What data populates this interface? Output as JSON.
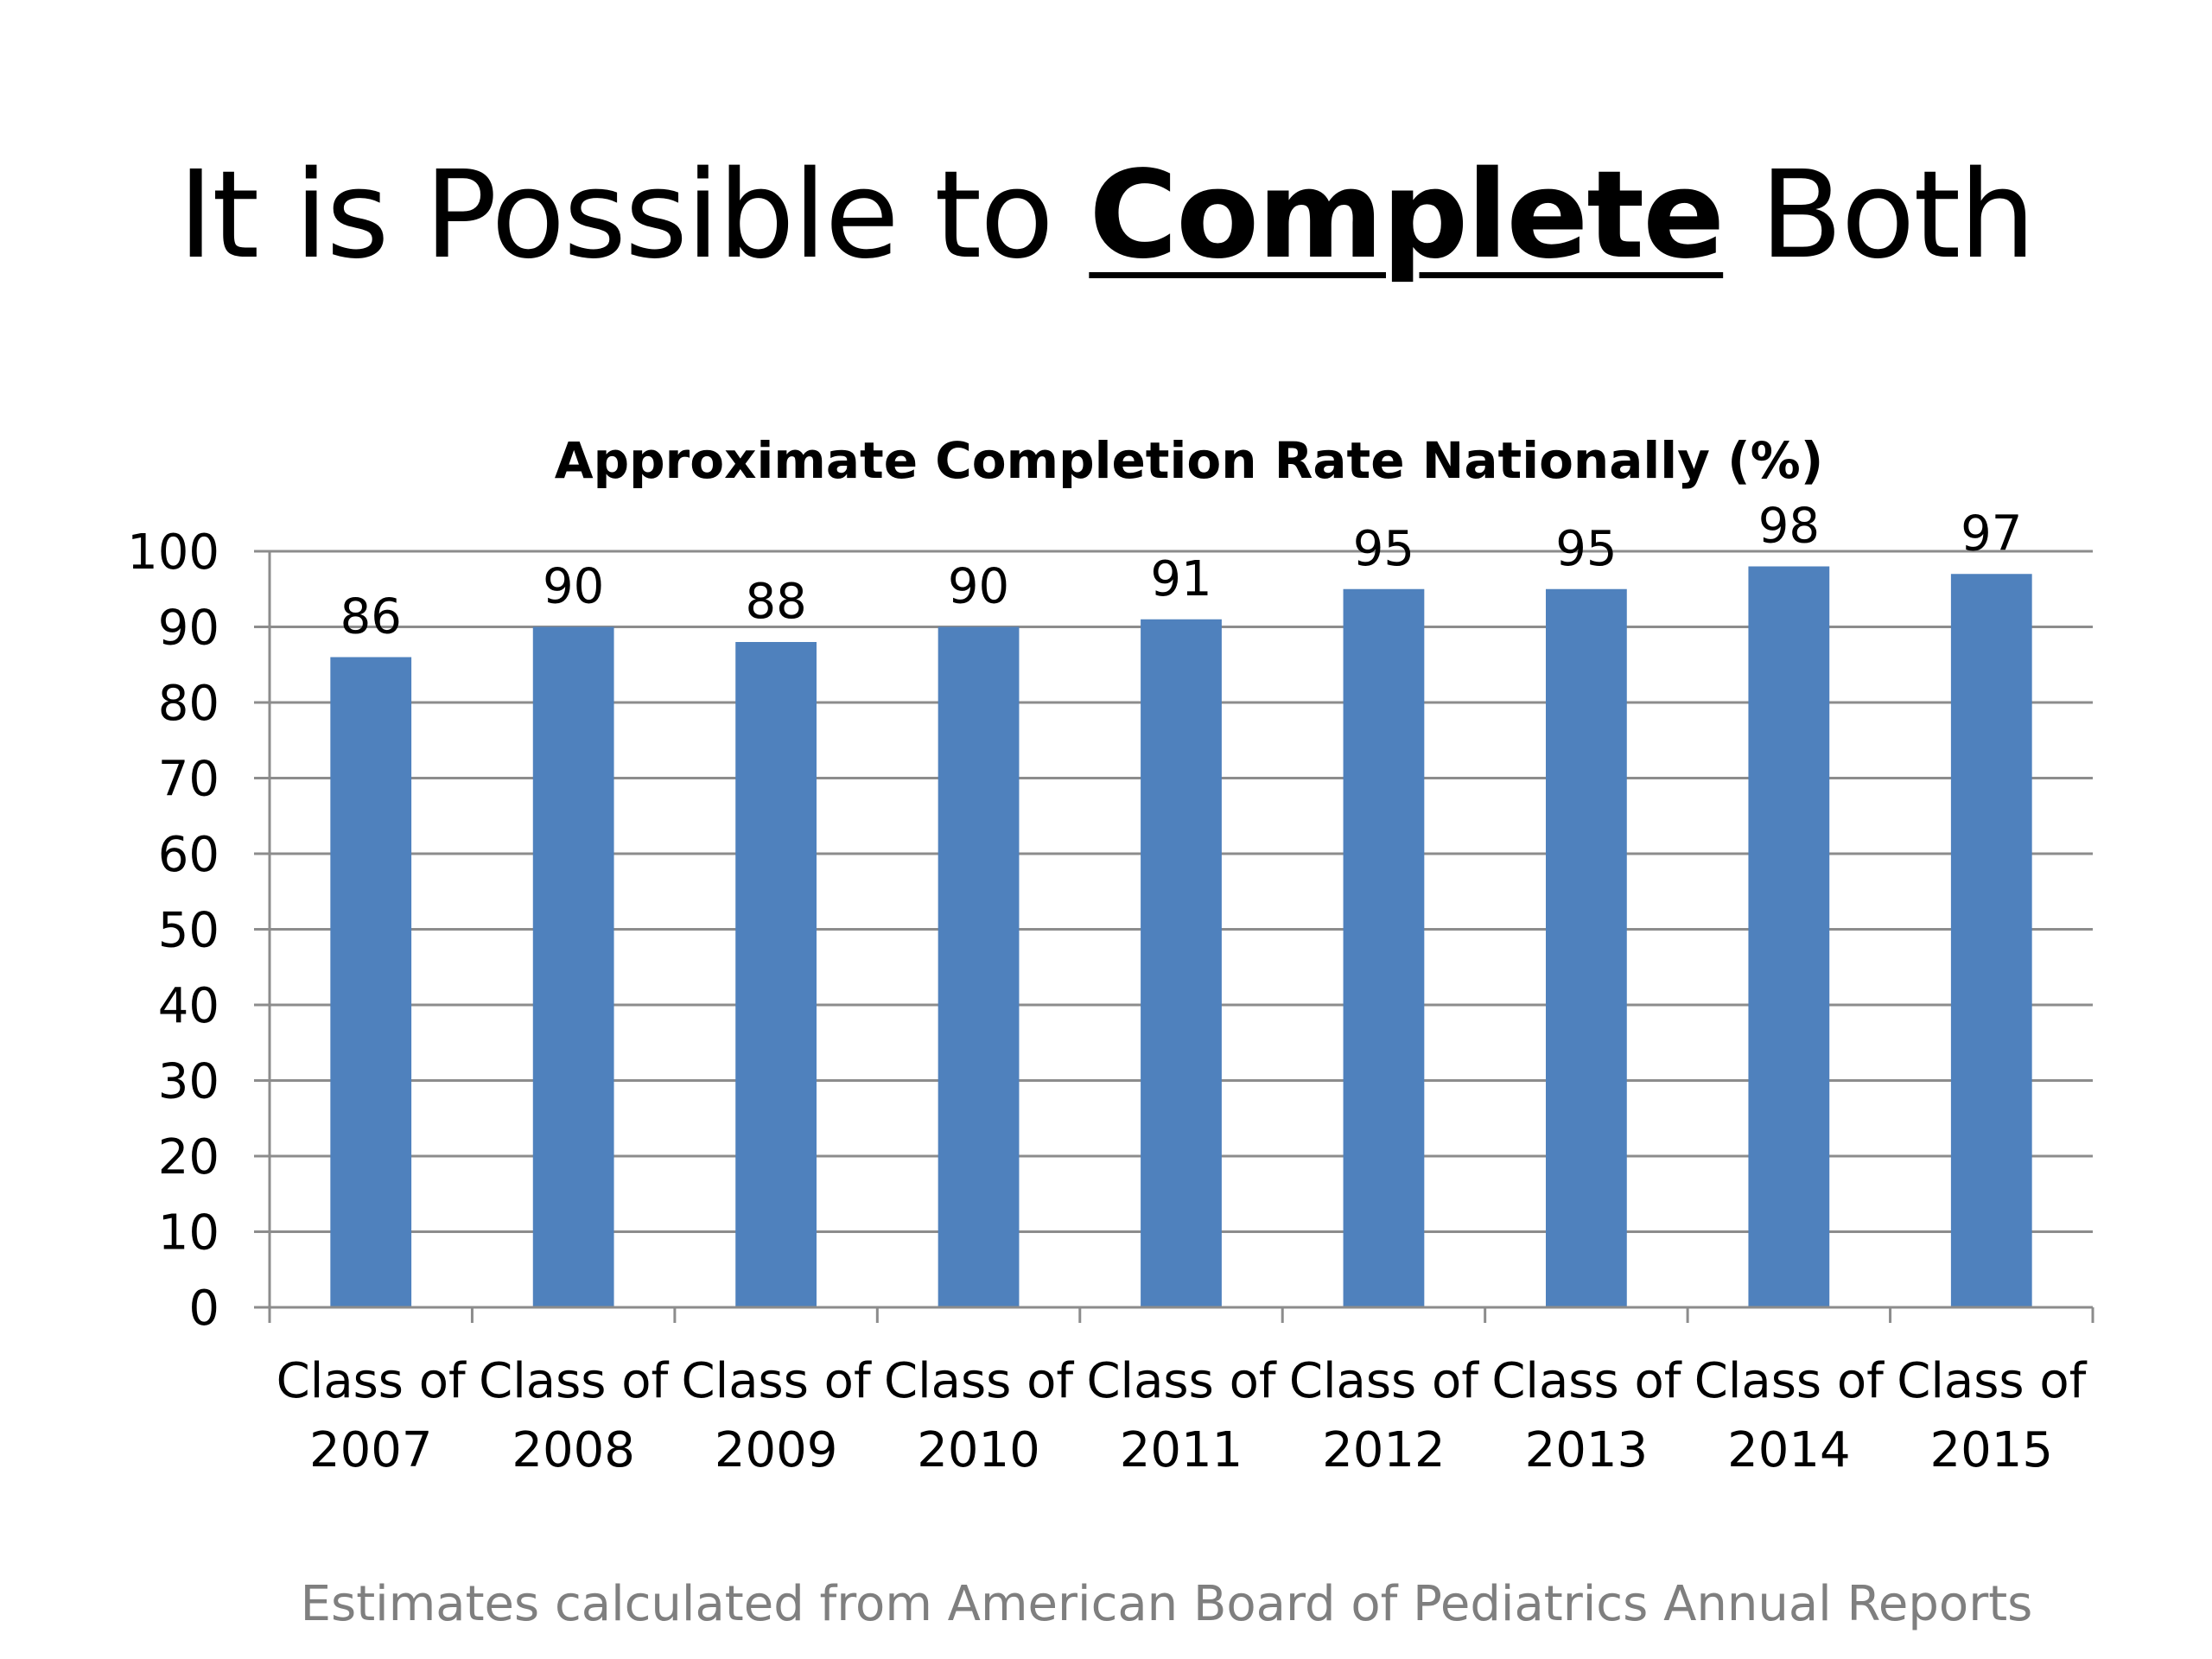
{
  "slide": {
    "title_before": "It is Possible to ",
    "title_emphasis": "Complete",
    "title_after": " Both",
    "footnote": "Estimates calculated from American Board of Pediatrics Annual Reports"
  },
  "chart_data": {
    "type": "bar",
    "title": "Approximate Completion Rate Nationally (%)",
    "xlabel": "",
    "ylabel": "",
    "categories": [
      [
        "Class of",
        "2007"
      ],
      [
        "Class of",
        "2008"
      ],
      [
        "Class of",
        "2009"
      ],
      [
        "Class of",
        "2010"
      ],
      [
        "Class of",
        "2011"
      ],
      [
        "Class of",
        "2012"
      ],
      [
        "Class of",
        "2013"
      ],
      [
        "Class of",
        "2014"
      ],
      [
        "Class of",
        "2015"
      ]
    ],
    "values": [
      86,
      90,
      88,
      90,
      91,
      95,
      95,
      98,
      97
    ],
    "value_labels": [
      "86",
      "90",
      "88",
      "90",
      "91",
      "95",
      "95",
      "98",
      "97"
    ],
    "ylim": [
      0,
      100
    ],
    "yticks": [
      0,
      10,
      20,
      30,
      40,
      50,
      60,
      70,
      80,
      90,
      100
    ],
    "ytick_labels": [
      "0",
      "10",
      "20",
      "30",
      "40",
      "50",
      "60",
      "70",
      "80",
      "90",
      "100"
    ],
    "grid": true,
    "legend": "none",
    "bar_color": "#4f81bd",
    "grid_color": "#8c8c8c",
    "axis_color": "#8c8c8c"
  }
}
